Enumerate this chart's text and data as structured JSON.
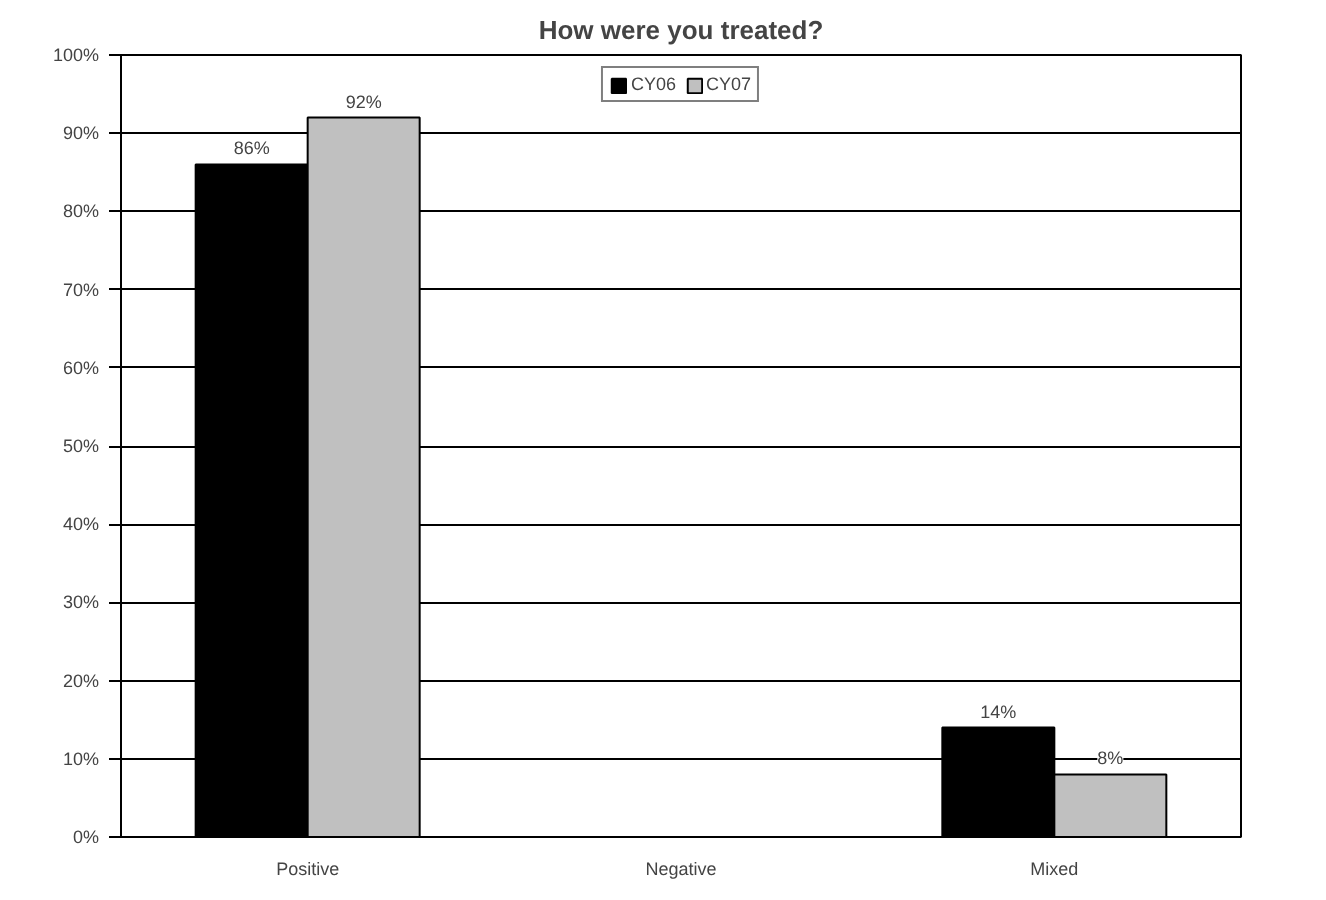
{
  "chart_data": {
    "type": "bar",
    "title": "How were you treated?",
    "categories": [
      "Positive",
      "Negative",
      "Mixed"
    ],
    "series": [
      {
        "name": "CY06",
        "color": "#000000",
        "values": [
          86,
          null,
          14
        ],
        "value_labels": [
          "86%",
          null,
          "14%"
        ]
      },
      {
        "name": "CY07",
        "color": "#c0c0c0",
        "values": [
          92,
          null,
          8
        ],
        "value_labels": [
          "92%",
          null,
          "8%"
        ]
      }
    ],
    "ylim": [
      0,
      100
    ],
    "yticks": [
      {
        "value": 0,
        "label": "0%"
      },
      {
        "value": 10,
        "label": "10%"
      },
      {
        "value": 20,
        "label": "20%"
      },
      {
        "value": 30,
        "label": "30%"
      },
      {
        "value": 40,
        "label": "40%"
      },
      {
        "value": 50,
        "label": "50%"
      },
      {
        "value": 60,
        "label": "60%"
      },
      {
        "value": 70,
        "label": "70%"
      },
      {
        "value": 80,
        "label": "80%"
      },
      {
        "value": 90,
        "label": "90%"
      },
      {
        "value": 100,
        "label": "100%"
      }
    ],
    "grid": "y",
    "legend": "top"
  }
}
